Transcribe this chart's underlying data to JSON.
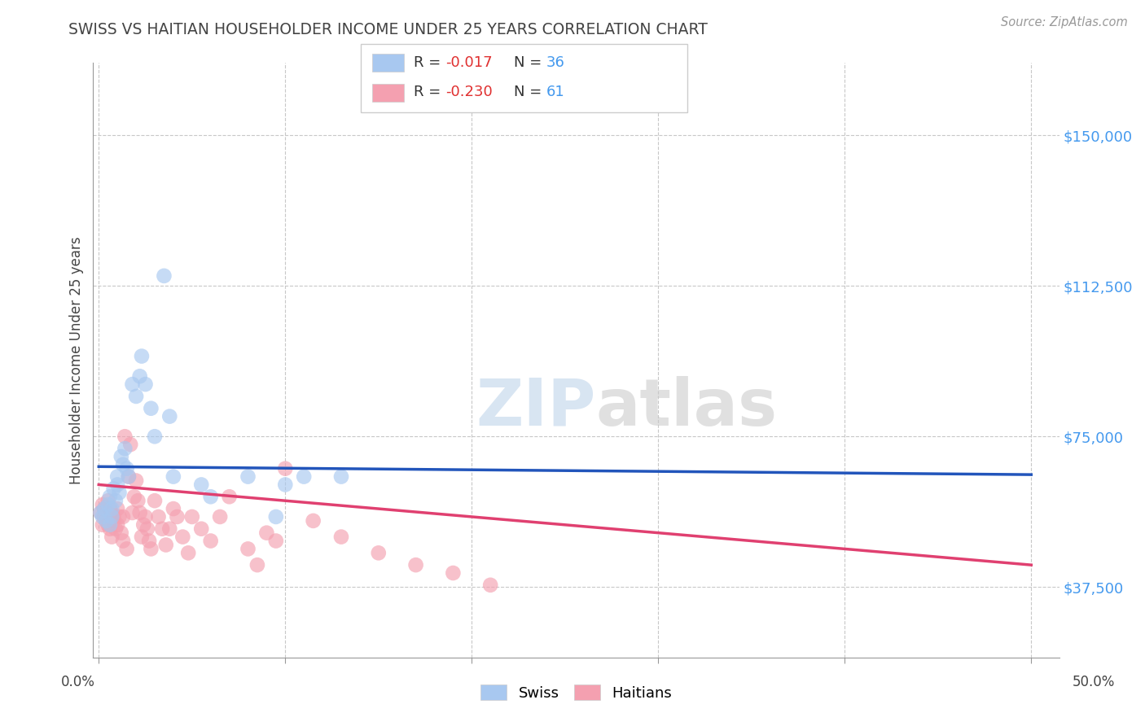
{
  "title": "SWISS VS HAITIAN HOUSEHOLDER INCOME UNDER 25 YEARS CORRELATION CHART",
  "source": "Source: ZipAtlas.com",
  "ylabel": "Householder Income Under 25 years",
  "ytick_labels": [
    "$37,500",
    "$75,000",
    "$112,500",
    "$150,000"
  ],
  "ytick_values": [
    37500,
    75000,
    112500,
    150000
  ],
  "ylim": [
    20000,
    168000
  ],
  "xlim": [
    -0.003,
    0.515
  ],
  "swiss_color": "#a8c8f0",
  "haitian_color": "#f4a0b0",
  "swiss_line_color": "#2255bb",
  "haitian_line_color": "#e04070",
  "background_color": "#ffffff",
  "grid_color": "#c8c8c8",
  "title_color": "#444444",
  "watermark_color": "#e0e8f0",
  "swiss_x": [
    0.001,
    0.002,
    0.003,
    0.004,
    0.005,
    0.006,
    0.006,
    0.007,
    0.007,
    0.008,
    0.009,
    0.01,
    0.01,
    0.011,
    0.012,
    0.013,
    0.014,
    0.015,
    0.016,
    0.018,
    0.02,
    0.022,
    0.023,
    0.025,
    0.028,
    0.03,
    0.035,
    0.038,
    0.04,
    0.055,
    0.06,
    0.08,
    0.095,
    0.1,
    0.11,
    0.13
  ],
  "swiss_y": [
    56000,
    55000,
    57000,
    54000,
    58000,
    60000,
    53000,
    57000,
    55000,
    62000,
    59000,
    65000,
    63000,
    61000,
    70000,
    68000,
    72000,
    67000,
    65000,
    88000,
    85000,
    90000,
    95000,
    88000,
    82000,
    75000,
    115000,
    80000,
    65000,
    63000,
    60000,
    65000,
    55000,
    63000,
    65000,
    65000
  ],
  "haitian_x": [
    0.001,
    0.002,
    0.002,
    0.003,
    0.003,
    0.004,
    0.005,
    0.005,
    0.006,
    0.006,
    0.007,
    0.007,
    0.008,
    0.008,
    0.009,
    0.01,
    0.01,
    0.011,
    0.012,
    0.013,
    0.013,
    0.014,
    0.015,
    0.016,
    0.017,
    0.018,
    0.019,
    0.02,
    0.021,
    0.022,
    0.023,
    0.024,
    0.025,
    0.026,
    0.027,
    0.028,
    0.03,
    0.032,
    0.034,
    0.036,
    0.038,
    0.04,
    0.042,
    0.045,
    0.048,
    0.05,
    0.055,
    0.06,
    0.065,
    0.07,
    0.08,
    0.085,
    0.09,
    0.095,
    0.1,
    0.115,
    0.13,
    0.15,
    0.17,
    0.19,
    0.21
  ],
  "haitian_y": [
    56000,
    58000,
    53000,
    55000,
    57000,
    54000,
    59000,
    53000,
    57000,
    52000,
    56000,
    50000,
    55000,
    54000,
    52000,
    57000,
    53000,
    55000,
    51000,
    55000,
    49000,
    75000,
    47000,
    65000,
    73000,
    56000,
    60000,
    64000,
    59000,
    56000,
    50000,
    53000,
    55000,
    52000,
    49000,
    47000,
    59000,
    55000,
    52000,
    48000,
    52000,
    57000,
    55000,
    50000,
    46000,
    55000,
    52000,
    49000,
    55000,
    60000,
    47000,
    43000,
    51000,
    49000,
    67000,
    54000,
    50000,
    46000,
    43000,
    41000,
    38000
  ]
}
